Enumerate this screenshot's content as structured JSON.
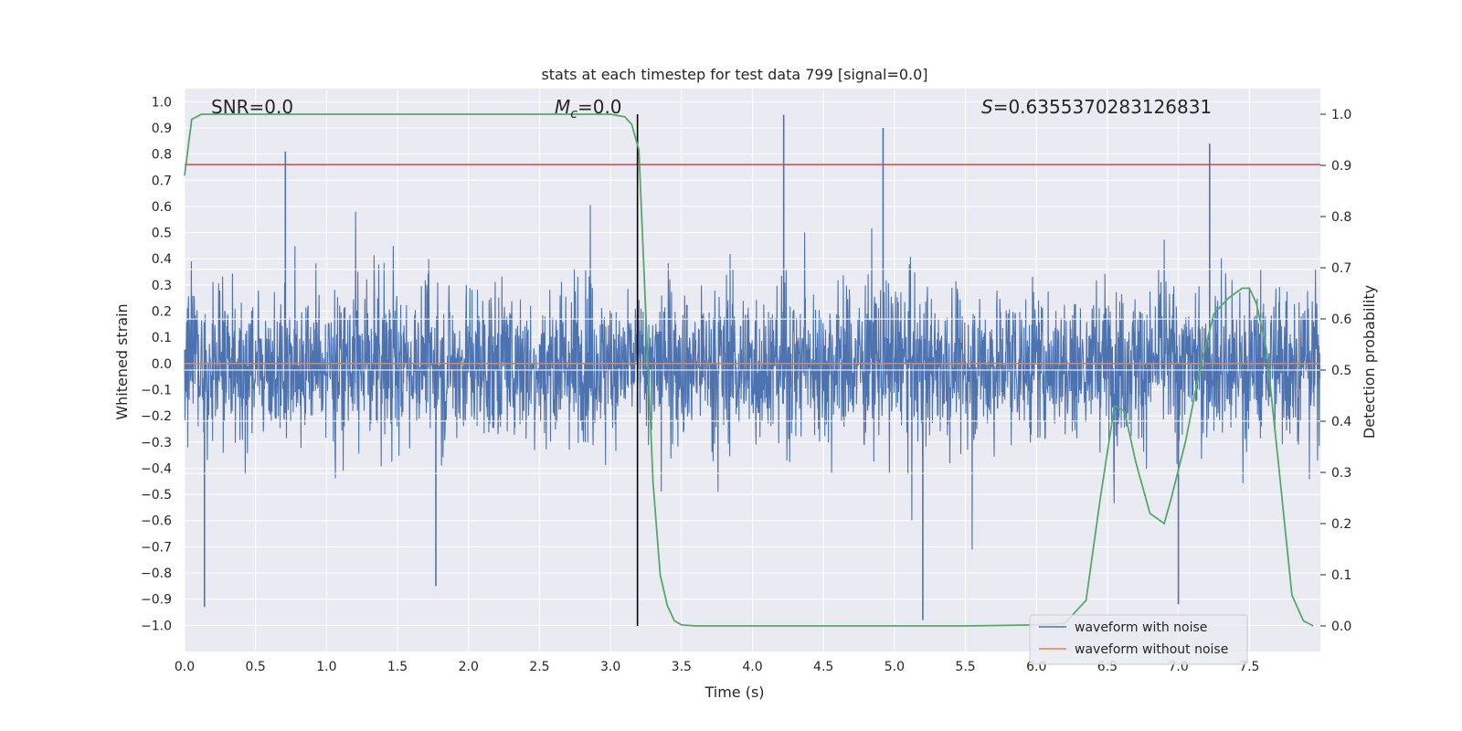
{
  "chart_data": {
    "type": "line",
    "title": "stats at each timestep for test data 799 [signal=0.0]",
    "xlabel": "Time (s)",
    "ylabel_left": "Whitened strain",
    "ylabel_right": "Detection probability",
    "xlim": [
      0.0,
      8.0
    ],
    "ylim_left": [
      -1.1,
      1.05
    ],
    "ylim_right": [
      -0.05,
      1.05
    ],
    "x_ticks": [
      "0.0",
      "0.5",
      "1.0",
      "1.5",
      "2.0",
      "2.5",
      "3.0",
      "3.5",
      "4.0",
      "4.5",
      "5.0",
      "5.5",
      "6.0",
      "6.5",
      "7.0",
      "7.5"
    ],
    "y_left_ticks": [
      "1.0",
      "0.9",
      "0.8",
      "0.7",
      "0.6",
      "0.5",
      "0.4",
      "0.3",
      "0.2",
      "0.1",
      "0.0",
      "−0.1",
      "−0.2",
      "−0.3",
      "−0.4",
      "−0.5",
      "−0.6",
      "−0.7",
      "−0.8",
      "−0.9",
      "−1.0"
    ],
    "y_right_ticks": [
      "1.0",
      "0.9",
      "0.8",
      "0.7",
      "0.6",
      "0.5",
      "0.4",
      "0.3",
      "0.2",
      "0.1",
      "0.0"
    ],
    "grid": true,
    "annotations": {
      "snr": "SNR=0.0",
      "mc_symbol": "M",
      "mc_sub": "c",
      "mc_value": "=0.0",
      "s_symbol": "S",
      "s_value": "=0.6355370283126831"
    },
    "threshold_left": 0.76,
    "marker_time": 3.19,
    "series": [
      {
        "name": "waveform with noise",
        "color": "#4c72b0",
        "axis": "left",
        "description": "whitened noisy strain, ~8192 samples, envelope approx ±0.5 with spikes to ±0.95",
        "spikes": [
          {
            "x": 0.14,
            "y": -0.93
          },
          {
            "x": 0.71,
            "y": 0.81
          },
          {
            "x": 1.77,
            "y": -0.85
          },
          {
            "x": 4.22,
            "y": 0.95
          },
          {
            "x": 4.92,
            "y": 0.9
          },
          {
            "x": 5.2,
            "y": -0.98
          },
          {
            "x": 7.0,
            "y": -0.92
          },
          {
            "x": 7.22,
            "y": 0.84
          }
        ]
      },
      {
        "name": "waveform without noise",
        "color": "#dd8452",
        "axis": "left",
        "x": [
          0.0,
          8.0
        ],
        "y": [
          0.0,
          0.0
        ]
      },
      {
        "name": "detection probability",
        "color": "#55a868",
        "axis": "right",
        "x": [
          0.0,
          0.05,
          0.12,
          0.2,
          0.5,
          1.0,
          2.0,
          3.0,
          3.1,
          3.15,
          3.2,
          3.25,
          3.3,
          3.35,
          3.4,
          3.45,
          3.5,
          3.6,
          3.8,
          4.5,
          5.5,
          6.0,
          6.2,
          6.35,
          6.45,
          6.55,
          6.62,
          6.7,
          6.8,
          6.9,
          6.95,
          7.05,
          7.15,
          7.25,
          7.35,
          7.45,
          7.5,
          7.55,
          7.62,
          7.7,
          7.8,
          7.88,
          7.95
        ],
        "y": [
          0.88,
          0.99,
          1.0,
          1.0,
          1.0,
          1.0,
          1.0,
          1.0,
          0.995,
          0.98,
          0.93,
          0.6,
          0.28,
          0.1,
          0.04,
          0.01,
          0.002,
          0.0,
          0.0,
          0.0,
          0.0,
          0.002,
          0.005,
          0.05,
          0.25,
          0.43,
          0.42,
          0.32,
          0.22,
          0.2,
          0.25,
          0.36,
          0.5,
          0.61,
          0.64,
          0.66,
          0.66,
          0.63,
          0.54,
          0.33,
          0.06,
          0.01,
          0.0
        ]
      }
    ],
    "legend": {
      "location": "lower-right",
      "entries": [
        {
          "label": "waveform with noise",
          "color": "#4c72b0"
        },
        {
          "label": "waveform without noise",
          "color": "#dd8452"
        }
      ]
    },
    "colors": {
      "background": "#eaeaf2",
      "grid": "#ffffff",
      "threshold": "#c44e52",
      "marker": "#000000"
    }
  }
}
